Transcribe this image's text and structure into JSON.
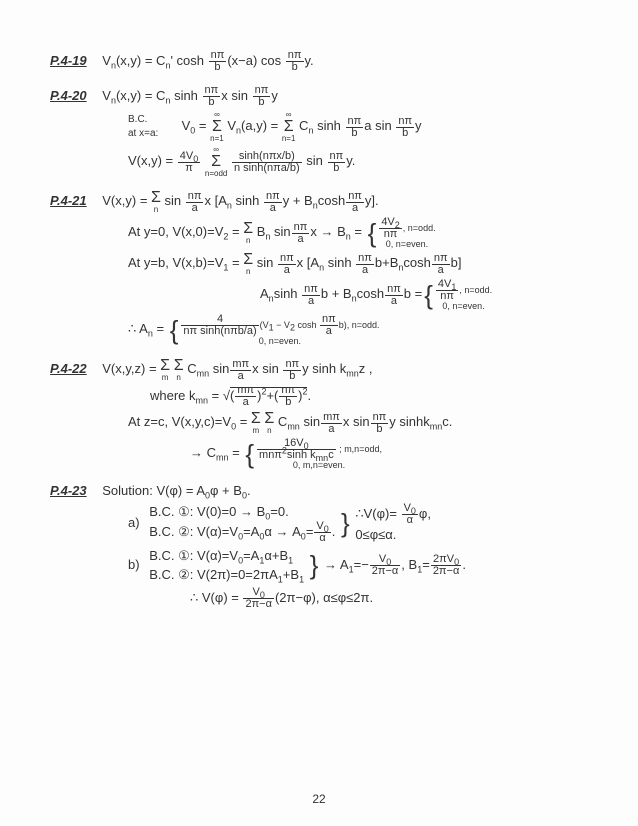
{
  "page_number": "22",
  "background_color": "#fdfdfd",
  "text_color": "#333",
  "font_family": "handwritten",
  "problems": {
    "p419": {
      "label": "P.4-19",
      "eq": "V<sub>n</sub>(x,y) = C<sub>n</sub>' cosh <span class='frac'><span class='num'>nπ</span><span class='den'>b</span></span>(x−a) cos <span class='frac'><span class='num'>nπ</span><span class='den'>b</span></span>y."
    },
    "p420": {
      "label": "P.4-20",
      "eq1": "V<sub>n</sub>(x,y) = C<sub>n</sub> sinh <span class='frac'><span class='num'>nπ</span><span class='den'>b</span></span>x  sin <span class='frac'><span class='num'>nπ</span><span class='den'>b</span></span>y",
      "bc_label": "B.C.<br>at x=a:",
      "eq2": "V<sub>0</sub> = <span class='sum'><span class='sup'>∞</span><span class='sig'>Σ</span><span class='sub'>n=1</span></span> V<sub>n</sub>(a,y) = <span class='sum'><span class='sup'>∞</span><span class='sig'>Σ</span><span class='sub'>n=1</span></span> C<sub>n</sub> sinh <span class='frac'><span class='num'>nπ</span><span class='den'>b</span></span>a sin <span class='frac'><span class='num'>nπ</span><span class='den'>b</span></span>y",
      "eq3": "V(x,y) = <span class='frac'><span class='num'>4V<sub>0</sub></span><span class='den'>π</span></span> <span class='sum'><span class='sup'>∞</span><span class='sig'>Σ</span><span class='sub'>n=odd</span></span> <span class='frac'><span class='num'>sinh(nπx/b)</span><span class='den'>n sinh(nπa/b)</span></span> sin <span class='frac'><span class='num'>nπ</span><span class='den'>b</span></span>y."
    },
    "p421": {
      "label": "P.4-21",
      "eq1": "V(x,y) = <span class='sum'><span class='sup'></span><span class='sig'>Σ</span><span class='sub'>n</span></span> sin <span class='frac'><span class='num'>nπ</span><span class='den'>a</span></span>x [A<sub>n</sub> sinh <span class='frac'><span class='num'>nπ</span><span class='den'>a</span></span>y + B<sub>n</sub>cosh<span class='frac'><span class='num'>nπ</span><span class='den'>a</span></span>y].",
      "eq2": "At y=0,  V(x,0)=V<sub>2</sub> = <span class='sum'><span class='sup'></span><span class='sig'>Σ</span><span class='sub'>n</span></span> B<sub>n</sub> sin<span class='frac'><span class='num'>nπ</span><span class='den'>a</span></span>x → B<sub>n</sub> = <span class='brace-r'>{</span><span class='stack'><span class='top'><span class='frac'><span class='num'>4V<sub>2</sub></span><span class='den'>nπ</span></span>, n=odd.</span><span class='bot'>0, n=even.</span></span>",
      "eq3": "At y=b,  V(x,b)=V<sub>1</sub> = <span class='sum'><span class='sup'></span><span class='sig'>Σ</span><span class='sub'>n</span></span> sin <span class='frac'><span class='num'>nπ</span><span class='den'>a</span></span>x [A<sub>n</sub> sinh <span class='frac'><span class='num'>nπ</span><span class='den'>a</span></span>b+B<sub>n</sub>cosh<span class='frac'><span class='num'>nπ</span><span class='den'>a</span></span>b]",
      "eq4": "A<sub>n</sub>sinh <span class='frac'><span class='num'>nπ</span><span class='den'>a</span></span>b + B<sub>n</sub>cosh<span class='frac'><span class='num'>nπ</span><span class='den'>a</span></span>b =<span class='brace-r'>{</span><span class='stack'><span class='top'><span class='frac'><span class='num'>4V<sub>1</sub></span><span class='den'>nπ</span></span>, n=odd.</span><span class='bot'>0, n=even.</span></span>",
      "eq5": "∴ A<sub>n</sub> = <span class='brace-r'>{</span><span class='stack'><span class='top'><span class='frac'><span class='num'>4</span><span class='den'>nπ sinh(nπb/a)</span></span>(V<sub>1</sub> − V<sub>2</sub> cosh <span class='frac'><span class='num'>nπ</span><span class='den'>a</span></span>b), n=odd.</span><span class='bot'>0,  n=even.</span></span>"
    },
    "p422": {
      "label": "P.4-22",
      "eq1": "V(x,y,z) = <span class='sum'><span class='sup'></span><span class='sig'>Σ</span><span class='sub'>m</span></span> <span class='sum'><span class='sup'></span><span class='sig'>Σ</span><span class='sub'>n</span></span> C<sub>mn</sub> sin<span class='frac'><span class='num'>mπ</span><span class='den'>a</span></span>x sin <span class='frac'><span class='num'>nπ</span><span class='den'>b</span></span>y sinh k<sub>mn</sub>z ,",
      "where": "where  k<sub>mn</sub> = √<span style='border-top:1px solid #333'>(<span class='frac'><span class='num'>mπ</span><span class='den'>a</span></span>)<sup>2</sup>+(<span class='frac'><span class='num'>nπ</span><span class='den'>b</span></span>)<sup>2</sup></span>.",
      "eq2": "At z=c,  V(x,y,c)=V<sub>0</sub> = <span class='sum'><span class='sup'></span><span class='sig'>Σ</span><span class='sub'>m</span></span> <span class='sum'><span class='sup'></span><span class='sig'>Σ</span><span class='sub'>n</span></span> C<sub>mn</sub> sin<span class='frac'><span class='num'>mπ</span><span class='den'>a</span></span>x sin<span class='frac'><span class='num'>nπ</span><span class='den'>b</span></span>y sinhk<sub>mn</sub>c.",
      "eq3": "→ C<sub>mn</sub> = <span class='brace-r'>{</span><span class='stack'><span class='top'><span class='frac'><span class='num'>16V<sub>0</sub></span><span class='den'>mnπ<sup>2</sup>sinh k<sub>mn</sub>c</span></span> ; m,n=odd,</span><span class='bot'>0, m,n=even.</span></span>"
    },
    "p423": {
      "label": "P.4-23",
      "sol": "Solution:  V(φ) = A<sub>0</sub>φ + B<sub>0</sub>.",
      "a_label": "a)",
      "a_bc1": "B.C. ①:  V(0)=0 → B<sub>0</sub>=0.",
      "a_bc2": "B.C. ②:  V(α)=V<sub>0</sub>=A<sub>0</sub>α → A<sub>0</sub>=<span class='frac'><span class='num'>V<sub>0</sub></span><span class='den'>α</span></span>.",
      "a_result": "∴V(φ)= <span class='frac'><span class='num'>V<sub>0</sub></span><span class='den'>α</span></span>φ,<br>0≤φ≤α.",
      "b_label": "b)",
      "b_bc1": "B.C. ①:  V(α)=V<sub>0</sub>=A<sub>1</sub>α+B<sub>1</sub>",
      "b_bc2": "B.C. ②:  V(2π)=0=2πA<sub>1</sub>+B<sub>1</sub>",
      "b_result": "→ A<sub>1</sub>=−<span class='frac'><span class='num'>V<sub>0</sub></span><span class='den'>2π−α</span></span>, B<sub>1</sub>=<span class='frac'><span class='num'>2πV<sub>0</sub></span><span class='den'>2π−α</span></span>.",
      "b_final": "∴ V(φ) = <span class='frac'><span class='num'>V<sub>0</sub></span><span class='den'>2π−α</span></span>(2π−φ),  α≤φ≤2π."
    }
  }
}
